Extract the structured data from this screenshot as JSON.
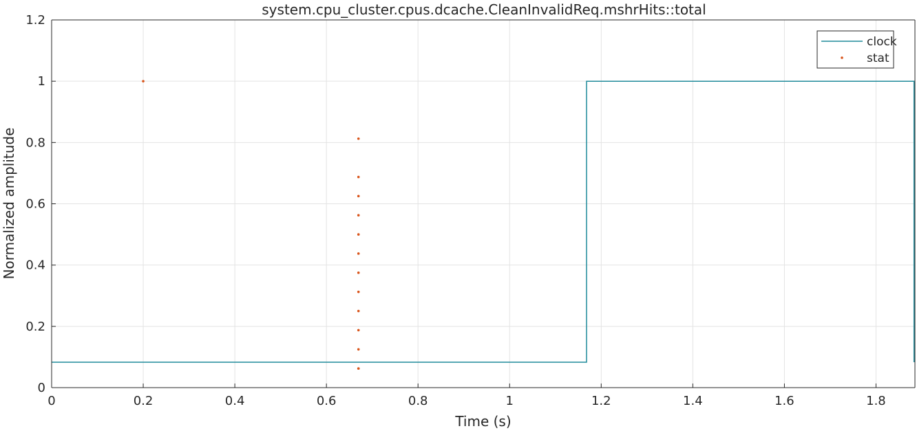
{
  "chart_data": {
    "type": "line",
    "title": "system.cpu_cluster.cpus.dcache.CleanInvalidReq.mshrHits::total",
    "xlabel": "Time (s)",
    "ylabel": "Normalized amplitude",
    "xlim": [
      0,
      1.885
    ],
    "ylim": [
      0,
      1.2
    ],
    "xticks": [
      0,
      0.2,
      0.4,
      0.6,
      0.8,
      1,
      1.2,
      1.4,
      1.6,
      1.8
    ],
    "xtick_labels": [
      "0",
      "0.2",
      "0.4",
      "0.6",
      "0.8",
      "1",
      "1.2",
      "1.4",
      "1.6",
      "1.8"
    ],
    "yticks": [
      0,
      0.2,
      0.4,
      0.6,
      0.8,
      1,
      1.2
    ],
    "ytick_labels": [
      "0",
      "0.2",
      "0.4",
      "0.6",
      "0.8",
      "1",
      "1.2"
    ],
    "grid": true,
    "legend_position": "top-right",
    "series": [
      {
        "name": "clock",
        "style": "line",
        "color": "#1f8a9a",
        "x": [
          0,
          1.168,
          1.168,
          1.883,
          1.883
        ],
        "y": [
          0.083,
          0.083,
          1.0,
          1.0,
          0.083
        ]
      },
      {
        "name": "stat",
        "style": "markers",
        "color": "#d9541a",
        "x": [
          0.2,
          0.67,
          0.67,
          0.67,
          0.67,
          0.67,
          0.67,
          0.67,
          0.67,
          0.67,
          0.67,
          0.67,
          0.67,
          0.67
        ],
        "y": [
          1.0,
          0.8125,
          0.6875,
          0.625,
          0.5625,
          0.5,
          0.4375,
          0.375,
          0.3125,
          0.25,
          0.1875,
          0.125,
          0.0625,
          0.0625
        ]
      }
    ]
  }
}
